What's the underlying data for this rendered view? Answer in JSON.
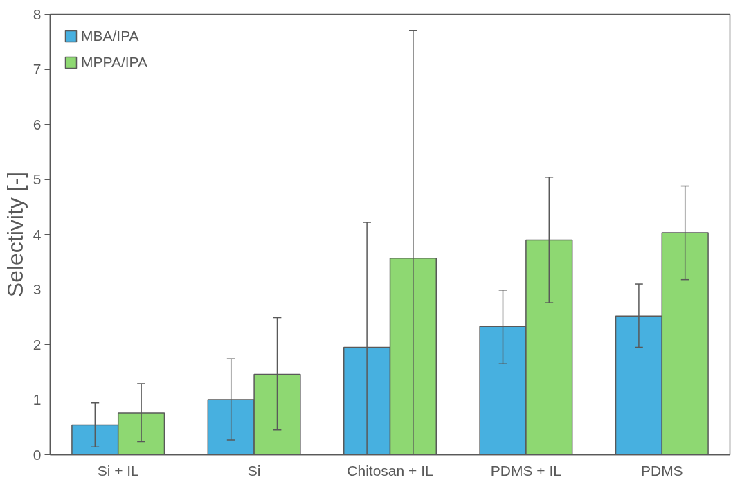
{
  "chart_data": {
    "type": "bar",
    "ylabel": "Selectivity [-]",
    "categories": [
      "Si + IL",
      "Si",
      "Chitosan + IL",
      "PDMS + IL",
      "PDMS"
    ],
    "series": [
      {
        "name": "MBA/IPA",
        "color": "#47b0e0",
        "values": [
          0.54,
          1.0,
          1.95,
          2.33,
          2.52
        ],
        "errors": [
          [
            0.14,
            0.94
          ],
          [
            0.27,
            1.74
          ],
          [
            0,
            4.22
          ],
          [
            1.65,
            2.99
          ],
          [
            1.95,
            3.1
          ]
        ]
      },
      {
        "name": "MPPA/IPA",
        "color": "#8ed872",
        "values": [
          0.76,
          1.46,
          3.57,
          3.9,
          4.03
        ],
        "errors": [
          [
            0.24,
            1.29
          ],
          [
            0.45,
            2.49
          ],
          [
            0,
            7.7
          ],
          [
            2.76,
            5.04
          ],
          [
            3.18,
            4.88
          ]
        ]
      }
    ],
    "ylim": [
      0,
      8
    ],
    "yticks": [
      0,
      1,
      2,
      3,
      4,
      5,
      6,
      7,
      8
    ],
    "grid": false,
    "legend": "top left"
  }
}
